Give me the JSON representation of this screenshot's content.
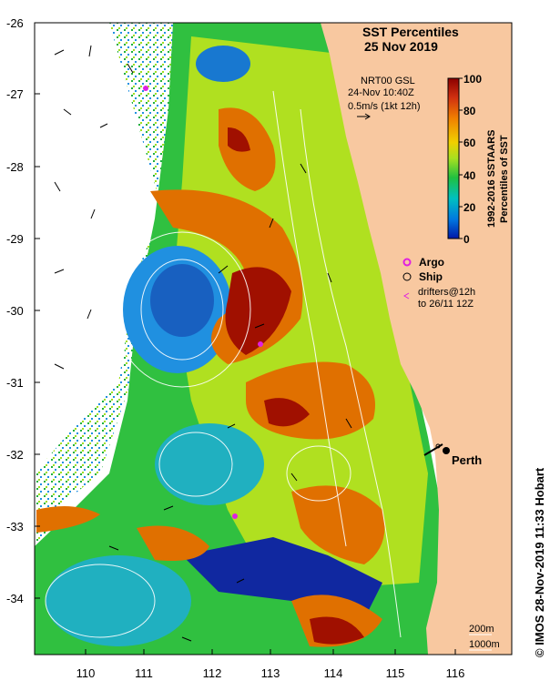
{
  "title": {
    "line1": "SST Percentiles",
    "line2": "25 Nov 2019"
  },
  "currents_info": {
    "line1": "NRT00 GSL",
    "line2": "24-Nov 10:40Z",
    "line3": "0.5m/s (1kt 12h)"
  },
  "colorbar": {
    "ticks": [
      "100",
      "80",
      "60",
      "40",
      "20",
      "0"
    ],
    "label1": "1992-2016 SSTAARS",
    "label2": "Percentiles of SST",
    "stops": [
      "#8b0000",
      "#d03010",
      "#f08000",
      "#f0d000",
      "#a8e020",
      "#20c040",
      "#00c0c0",
      "#0078e0",
      "#0018a8"
    ]
  },
  "legend": {
    "argo_label": "Argo",
    "ship_label": "Ship",
    "drifters_line1": "drifters@12h",
    "drifters_line2": "to 26/11 12Z",
    "argo_color": "#e020e0",
    "drifter_color": "#e020e0"
  },
  "place_labels": {
    "city": "Perth"
  },
  "isobaths": {
    "label_200": "200m",
    "label_1000": "1000m"
  },
  "axes": {
    "lat_labels": [
      "-26",
      "-27",
      "-28",
      "-29",
      "-30",
      "-31",
      "-32",
      "-33",
      "-34"
    ],
    "lon_labels": [
      "110",
      "111",
      "112",
      "113",
      "114",
      "115",
      "116"
    ]
  },
  "credit": "© IMOS 28-Nov-2019 11:33 Hobart",
  "colors": {
    "land": "#f8c8a0",
    "frame": "#000000"
  }
}
